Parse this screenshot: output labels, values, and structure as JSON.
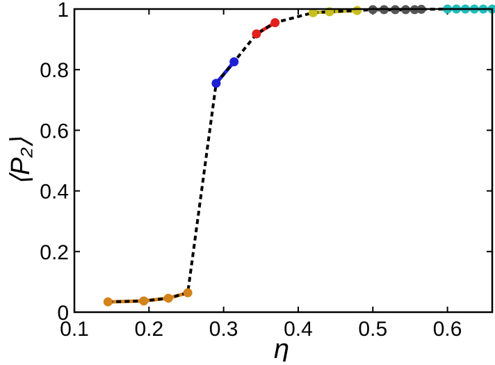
{
  "chart_data": {
    "type": "line",
    "title": "",
    "xlabel": "η",
    "ylabel": "⟨P₂⟩",
    "xlim": [
      0.1,
      0.66
    ],
    "ylim": [
      0,
      1
    ],
    "xticks": [
      0.1,
      0.2,
      0.3,
      0.4,
      0.5,
      0.6
    ],
    "xtick_labels": [
      "0.1",
      "0.2",
      "0.3",
      "0.4",
      "0.5",
      "0.6"
    ],
    "yticks": [
      0,
      0.2,
      0.4,
      0.6,
      0.8,
      1
    ],
    "ytick_labels": [
      "0",
      "0.2",
      "0.4",
      "0.6",
      "0.8",
      "1"
    ],
    "grid": false,
    "legend": "none",
    "fit_line": {
      "style": "dashed",
      "color": "#000000",
      "x": [
        0.145,
        0.193,
        0.226,
        0.252,
        0.29,
        0.314,
        0.344,
        0.369,
        0.42,
        0.442,
        0.479,
        0.5,
        0.515,
        0.53,
        0.544,
        0.556,
        0.565,
        0.6,
        0.66
      ],
      "y": [
        0.034,
        0.037,
        0.046,
        0.064,
        0.755,
        0.826,
        0.918,
        0.955,
        0.988,
        0.991,
        0.995,
        0.998,
        0.998,
        0.998,
        0.998,
        0.998,
        0.999,
        1.0,
        1.0
      ]
    },
    "series": [
      {
        "color": "#d4821a",
        "x": [
          0.145,
          0.193,
          0.226,
          0.252
        ],
        "y": [
          0.034,
          0.037,
          0.046,
          0.064
        ]
      },
      {
        "color": "#1f1fd6",
        "x": [
          0.29,
          0.314
        ],
        "y": [
          0.755,
          0.826
        ]
      },
      {
        "color": "#e0201c",
        "x": [
          0.344,
          0.369
        ],
        "y": [
          0.918,
          0.955
        ]
      },
      {
        "color": "#c8be1e",
        "x": [
          0.42,
          0.442,
          0.479
        ],
        "y": [
          0.988,
          0.991,
          0.995
        ]
      },
      {
        "color": "#555555",
        "x": [
          0.5,
          0.515,
          0.53,
          0.544,
          0.556,
          0.565
        ],
        "y": [
          0.998,
          0.998,
          0.998,
          0.998,
          0.998,
          0.999
        ]
      },
      {
        "color": "#21bdbd",
        "x": [
          0.6,
          0.612,
          0.624,
          0.636,
          0.648,
          0.66
        ],
        "y": [
          1.0,
          1.0,
          1.0,
          1.0,
          1.0,
          1.0
        ]
      }
    ]
  }
}
